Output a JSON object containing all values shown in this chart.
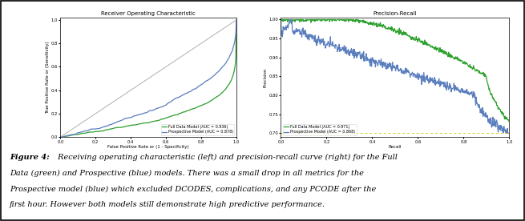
{
  "roc_title": "Receiver Operating Characteristic",
  "roc_xlabel": "False Positive Rate or (1 - Specificity)",
  "roc_ylabel": "True Positive Rate or (Sensitivity)",
  "roc_full_label": "Full Data Model (AUC = 0.936)",
  "roc_prosp_label": "Prospective Model (AUC = 0.878)",
  "pr_title": "Precision-Recall",
  "pr_xlabel": "Recall",
  "pr_ylabel": "Precision",
  "pr_full_label": "Full Data Model (AUC = 0.971)",
  "pr_prosp_label": "Prospective Model (AUC = 0.868)",
  "full_color": "#2ca02c",
  "prosp_color": "#5b7fbe",
  "diagonal_color": "#b0b0b0",
  "baseline_color": "#cccc00",
  "fig_bold": "Figure 4:",
  "fig_caption": " Receiving operating characteristic (left) and precision-recall curve (right) for the Full Data (green) and Prospective (blue) models. There was a small drop in all metrics for the Prospective model (blue) which excluded DCODES, complications, and any PCODE after the first hour. However both models still demonstrate high predictive performance.",
  "pr_ylim": [
    0.69,
    1.005
  ],
  "pr_yticks": [
    0.7,
    0.75,
    0.8,
    0.85,
    0.9,
    0.95,
    1.0
  ],
  "roc_ylim": [
    0.0,
    1.02
  ],
  "roc_yticks": [
    0.0,
    0.2,
    0.4,
    0.6,
    0.8,
    1.0
  ],
  "roc_xticks": [
    0.0,
    0.2,
    0.4,
    0.6,
    0.8,
    1.0
  ],
  "pr_xticks": [
    0.0,
    0.2,
    0.4,
    0.6,
    0.8,
    1.0
  ]
}
